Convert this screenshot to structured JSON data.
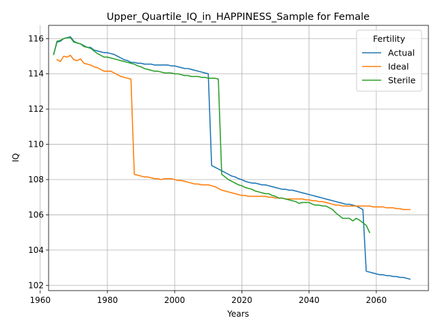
{
  "chart_data": {
    "type": "line",
    "title": "Upper_Quartile_IQ_in_HAPPINESS_Sample for Female",
    "xlabel": "Years",
    "ylabel": "IQ",
    "xlim": [
      1962.5,
      2075.5
    ],
    "ylim": [
      101.7,
      116.75
    ],
    "xticks": [
      1960,
      1980,
      2000,
      2020,
      2040,
      2060
    ],
    "yticks": [
      102,
      104,
      106,
      108,
      110,
      112,
      114,
      116
    ],
    "grid": true,
    "legend": {
      "title": "Fertility",
      "position": "top-right"
    },
    "series": [
      {
        "name": "Actual",
        "color": "#1f77b4",
        "points": [
          [
            1964,
            115.1
          ],
          [
            1965,
            115.8
          ],
          [
            1966,
            115.85
          ],
          [
            1967,
            116.0
          ],
          [
            1968,
            116.05
          ],
          [
            1969,
            116.1
          ],
          [
            1970,
            115.85
          ],
          [
            1971,
            115.75
          ],
          [
            1972,
            115.7
          ],
          [
            1973,
            115.6
          ],
          [
            1974,
            115.5
          ],
          [
            1975,
            115.5
          ],
          [
            1976,
            115.35
          ],
          [
            1977,
            115.3
          ],
          [
            1978,
            115.25
          ],
          [
            1979,
            115.2
          ],
          [
            1980,
            115.2
          ],
          [
            1981,
            115.15
          ],
          [
            1982,
            115.1
          ],
          [
            1983,
            115.0
          ],
          [
            1984,
            114.9
          ],
          [
            1985,
            114.8
          ],
          [
            1986,
            114.75
          ],
          [
            1987,
            114.65
          ],
          [
            1988,
            114.65
          ],
          [
            1989,
            114.6
          ],
          [
            1990,
            114.6
          ],
          [
            1991,
            114.55
          ],
          [
            1992,
            114.55
          ],
          [
            1993,
            114.55
          ],
          [
            1994,
            114.5
          ],
          [
            1995,
            114.5
          ],
          [
            1996,
            114.5
          ],
          [
            1997,
            114.5
          ],
          [
            1998,
            114.5
          ],
          [
            1999,
            114.45
          ],
          [
            2000,
            114.45
          ],
          [
            2001,
            114.4
          ],
          [
            2002,
            114.35
          ],
          [
            2003,
            114.3
          ],
          [
            2004,
            114.3
          ],
          [
            2005,
            114.25
          ],
          [
            2006,
            114.2
          ],
          [
            2007,
            114.15
          ],
          [
            2008,
            114.1
          ],
          [
            2009,
            114.05
          ],
          [
            2010,
            114.0
          ],
          [
            2011,
            108.8
          ],
          [
            2012,
            108.7
          ],
          [
            2013,
            108.6
          ],
          [
            2014,
            108.5
          ],
          [
            2015,
            108.4
          ],
          [
            2016,
            108.3
          ],
          [
            2017,
            108.2
          ],
          [
            2018,
            108.15
          ],
          [
            2019,
            108.05
          ],
          [
            2020,
            108.0
          ],
          [
            2021,
            107.9
          ],
          [
            2022,
            107.85
          ],
          [
            2023,
            107.8
          ],
          [
            2024,
            107.8
          ],
          [
            2025,
            107.75
          ],
          [
            2026,
            107.7
          ],
          [
            2027,
            107.7
          ],
          [
            2028,
            107.65
          ],
          [
            2029,
            107.6
          ],
          [
            2030,
            107.55
          ],
          [
            2031,
            107.5
          ],
          [
            2032,
            107.45
          ],
          [
            2033,
            107.45
          ],
          [
            2034,
            107.4
          ],
          [
            2035,
            107.4
          ],
          [
            2036,
            107.35
          ],
          [
            2037,
            107.3
          ],
          [
            2038,
            107.25
          ],
          [
            2039,
            107.2
          ],
          [
            2040,
            107.15
          ],
          [
            2041,
            107.1
          ],
          [
            2042,
            107.05
          ],
          [
            2043,
            107.0
          ],
          [
            2044,
            106.95
          ],
          [
            2045,
            106.9
          ],
          [
            2046,
            106.85
          ],
          [
            2047,
            106.8
          ],
          [
            2048,
            106.75
          ],
          [
            2049,
            106.7
          ],
          [
            2050,
            106.65
          ],
          [
            2051,
            106.6
          ],
          [
            2052,
            106.6
          ],
          [
            2053,
            106.55
          ],
          [
            2054,
            106.5
          ],
          [
            2055,
            106.4
          ],
          [
            2056,
            106.3
          ],
          [
            2057,
            102.8
          ],
          [
            2058,
            102.75
          ],
          [
            2059,
            102.7
          ],
          [
            2060,
            102.65
          ],
          [
            2061,
            102.6
          ],
          [
            2062,
            102.6
          ],
          [
            2063,
            102.55
          ],
          [
            2064,
            102.55
          ],
          [
            2065,
            102.5
          ],
          [
            2066,
            102.5
          ],
          [
            2067,
            102.45
          ],
          [
            2068,
            102.45
          ],
          [
            2069,
            102.4
          ],
          [
            2070,
            102.35
          ]
        ]
      },
      {
        "name": "Ideal",
        "color": "#ff7f0e",
        "points": [
          [
            1965,
            114.8
          ],
          [
            1966,
            114.7
          ],
          [
            1967,
            115.0
          ],
          [
            1968,
            114.95
          ],
          [
            1969,
            115.05
          ],
          [
            1970,
            114.8
          ],
          [
            1971,
            114.75
          ],
          [
            1972,
            114.85
          ],
          [
            1973,
            114.6
          ],
          [
            1974,
            114.55
          ],
          [
            1975,
            114.5
          ],
          [
            1976,
            114.4
          ],
          [
            1977,
            114.35
          ],
          [
            1978,
            114.25
          ],
          [
            1979,
            114.15
          ],
          [
            1980,
            114.15
          ],
          [
            1981,
            114.15
          ],
          [
            1982,
            114.05
          ],
          [
            1983,
            113.95
          ],
          [
            1984,
            113.85
          ],
          [
            1985,
            113.8
          ],
          [
            1986,
            113.75
          ],
          [
            1987,
            113.7
          ],
          [
            1988,
            108.3
          ],
          [
            1989,
            108.25
          ],
          [
            1990,
            108.2
          ],
          [
            1991,
            108.15
          ],
          [
            1992,
            108.15
          ],
          [
            1993,
            108.1
          ],
          [
            1994,
            108.05
          ],
          [
            1995,
            108.05
          ],
          [
            1996,
            108.0
          ],
          [
            1997,
            108.05
          ],
          [
            1998,
            108.05
          ],
          [
            1999,
            108.05
          ],
          [
            2000,
            108.0
          ],
          [
            2001,
            107.95
          ],
          [
            2002,
            107.95
          ],
          [
            2003,
            107.9
          ],
          [
            2004,
            107.85
          ],
          [
            2005,
            107.8
          ],
          [
            2006,
            107.75
          ],
          [
            2007,
            107.75
          ],
          [
            2008,
            107.7
          ],
          [
            2009,
            107.7
          ],
          [
            2010,
            107.7
          ],
          [
            2011,
            107.65
          ],
          [
            2012,
            107.6
          ],
          [
            2013,
            107.5
          ],
          [
            2014,
            107.4
          ],
          [
            2015,
            107.35
          ],
          [
            2016,
            107.3
          ],
          [
            2017,
            107.25
          ],
          [
            2018,
            107.2
          ],
          [
            2019,
            107.15
          ],
          [
            2020,
            107.1
          ],
          [
            2021,
            107.1
          ],
          [
            2022,
            107.05
          ],
          [
            2023,
            107.05
          ],
          [
            2024,
            107.05
          ],
          [
            2025,
            107.05
          ],
          [
            2026,
            107.05
          ],
          [
            2027,
            107.05
          ],
          [
            2028,
            107.0
          ],
          [
            2029,
            107.0
          ],
          [
            2030,
            106.95
          ],
          [
            2031,
            106.95
          ],
          [
            2032,
            106.95
          ],
          [
            2033,
            106.9
          ],
          [
            2034,
            106.9
          ],
          [
            2035,
            106.9
          ],
          [
            2036,
            106.9
          ],
          [
            2037,
            106.9
          ],
          [
            2038,
            106.9
          ],
          [
            2039,
            106.85
          ],
          [
            2040,
            106.85
          ],
          [
            2041,
            106.8
          ],
          [
            2042,
            106.8
          ],
          [
            2043,
            106.75
          ],
          [
            2044,
            106.75
          ],
          [
            2045,
            106.7
          ],
          [
            2046,
            106.65
          ],
          [
            2047,
            106.6
          ],
          [
            2048,
            106.55
          ],
          [
            2049,
            106.55
          ],
          [
            2050,
            106.5
          ],
          [
            2051,
            106.5
          ],
          [
            2052,
            106.5
          ],
          [
            2053,
            106.5
          ],
          [
            2054,
            106.5
          ],
          [
            2055,
            106.5
          ],
          [
            2056,
            106.5
          ],
          [
            2057,
            106.5
          ],
          [
            2058,
            106.5
          ],
          [
            2059,
            106.45
          ],
          [
            2060,
            106.45
          ],
          [
            2061,
            106.45
          ],
          [
            2062,
            106.45
          ],
          [
            2063,
            106.4
          ],
          [
            2064,
            106.4
          ],
          [
            2065,
            106.4
          ],
          [
            2066,
            106.35
          ],
          [
            2067,
            106.35
          ],
          [
            2068,
            106.3
          ],
          [
            2069,
            106.3
          ],
          [
            2070,
            106.3
          ]
        ]
      },
      {
        "name": "Sterile",
        "color": "#2ca02c",
        "points": [
          [
            1964,
            115.1
          ],
          [
            1965,
            115.85
          ],
          [
            1966,
            115.9
          ],
          [
            1967,
            116.0
          ],
          [
            1968,
            116.05
          ],
          [
            1969,
            116.05
          ],
          [
            1970,
            115.8
          ],
          [
            1971,
            115.75
          ],
          [
            1972,
            115.7
          ],
          [
            1973,
            115.55
          ],
          [
            1974,
            115.5
          ],
          [
            1975,
            115.45
          ],
          [
            1976,
            115.3
          ],
          [
            1977,
            115.15
          ],
          [
            1978,
            115.05
          ],
          [
            1979,
            114.95
          ],
          [
            1980,
            114.95
          ],
          [
            1981,
            114.9
          ],
          [
            1982,
            114.85
          ],
          [
            1983,
            114.8
          ],
          [
            1984,
            114.75
          ],
          [
            1985,
            114.7
          ],
          [
            1986,
            114.65
          ],
          [
            1987,
            114.6
          ],
          [
            1988,
            114.55
          ],
          [
            1989,
            114.45
          ],
          [
            1990,
            114.4
          ],
          [
            1991,
            114.3
          ],
          [
            1992,
            114.25
          ],
          [
            1993,
            114.2
          ],
          [
            1994,
            114.15
          ],
          [
            1995,
            114.15
          ],
          [
            1996,
            114.1
          ],
          [
            1997,
            114.05
          ],
          [
            1998,
            114.05
          ],
          [
            1999,
            114.05
          ],
          [
            2000,
            114.0
          ],
          [
            2001,
            114.0
          ],
          [
            2002,
            113.95
          ],
          [
            2003,
            113.9
          ],
          [
            2004,
            113.9
          ],
          [
            2005,
            113.85
          ],
          [
            2006,
            113.85
          ],
          [
            2007,
            113.85
          ],
          [
            2008,
            113.8
          ],
          [
            2009,
            113.8
          ],
          [
            2010,
            113.75
          ],
          [
            2011,
            113.75
          ],
          [
            2012,
            113.75
          ],
          [
            2013,
            113.7
          ],
          [
            2014,
            108.3
          ],
          [
            2015,
            108.15
          ],
          [
            2016,
            108.0
          ],
          [
            2017,
            107.9
          ],
          [
            2018,
            107.8
          ],
          [
            2019,
            107.7
          ],
          [
            2020,
            107.65
          ],
          [
            2021,
            107.55
          ],
          [
            2022,
            107.5
          ],
          [
            2023,
            107.45
          ],
          [
            2024,
            107.35
          ],
          [
            2025,
            107.3
          ],
          [
            2026,
            107.25
          ],
          [
            2027,
            107.2
          ],
          [
            2028,
            107.2
          ],
          [
            2029,
            107.1
          ],
          [
            2030,
            107.05
          ],
          [
            2031,
            106.95
          ],
          [
            2032,
            106.95
          ],
          [
            2033,
            106.9
          ],
          [
            2034,
            106.85
          ],
          [
            2035,
            106.8
          ],
          [
            2036,
            106.75
          ],
          [
            2037,
            106.65
          ],
          [
            2038,
            106.7
          ],
          [
            2039,
            106.7
          ],
          [
            2040,
            106.7
          ],
          [
            2041,
            106.6
          ],
          [
            2042,
            106.55
          ],
          [
            2043,
            106.55
          ],
          [
            2044,
            106.5
          ],
          [
            2045,
            106.5
          ],
          [
            2046,
            106.4
          ],
          [
            2047,
            106.3
          ],
          [
            2048,
            106.1
          ],
          [
            2049,
            105.95
          ],
          [
            2050,
            105.8
          ],
          [
            2051,
            105.8
          ],
          [
            2052,
            105.8
          ],
          [
            2053,
            105.65
          ],
          [
            2054,
            105.8
          ],
          [
            2055,
            105.7
          ],
          [
            2056,
            105.55
          ],
          [
            2057,
            105.4
          ],
          [
            2058,
            105.0
          ]
        ]
      }
    ]
  }
}
